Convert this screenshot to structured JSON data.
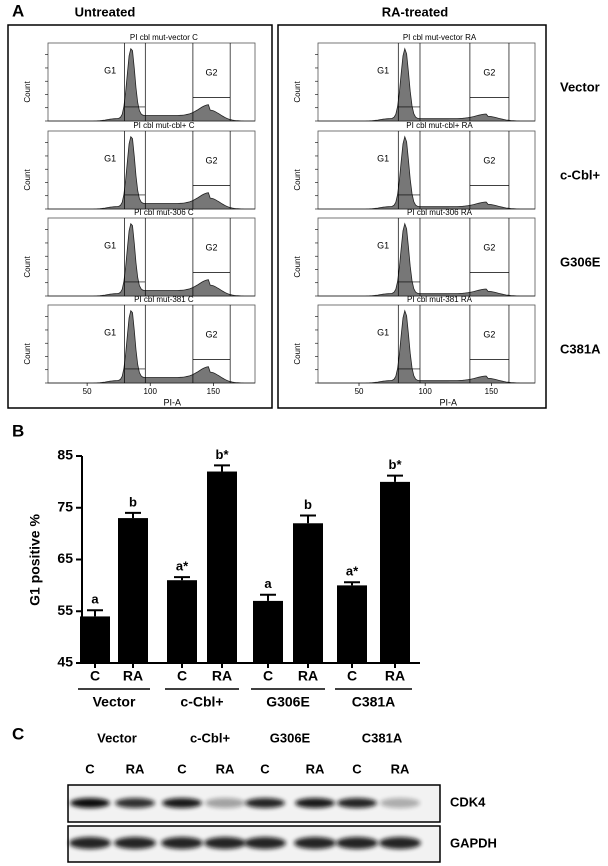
{
  "panel_a": {
    "label": "A",
    "columns": [
      "Untreated",
      "RA-treated"
    ],
    "rows": [
      {
        "label": "Vector",
        "plots": [
          "PI cbl mut-vector C",
          "PI cbl mut-vector RA"
        ]
      },
      {
        "label": "c-Cbl+",
        "plots": [
          "PI cbl mut-cbl+ C",
          "PI cbl mut-cbl+ RA"
        ]
      },
      {
        "label": "G306E",
        "plots": [
          "PI cbl mut-306 C",
          "PI cbl mut-306 RA"
        ]
      },
      {
        "label": "C381A",
        "plots": [
          "PI cbl mut-381 C",
          "PI cbl mut-381 RA"
        ]
      }
    ],
    "gates": [
      "G1",
      "G2"
    ],
    "y_label": "Count",
    "x_label": "PI-A",
    "xlim": [
      19,
      183
    ],
    "xticks": [
      50,
      100,
      150
    ]
  },
  "chart_data": {
    "type": "bar",
    "panel_label": "B",
    "y_label": "G1 positive %",
    "categories": [
      "C",
      "RA",
      "C",
      "RA",
      "C",
      "RA",
      "C",
      "RA"
    ],
    "groups": [
      "Vector",
      "c-Cbl+",
      "G306E",
      "C381A"
    ],
    "values": [
      54,
      73,
      61,
      82,
      57,
      72,
      60,
      80
    ],
    "errors": [
      1.2,
      1.0,
      0.6,
      1.2,
      1.2,
      1.5,
      0.6,
      1.2
    ],
    "annotations": [
      "a",
      "b",
      "a*",
      "b*",
      "a",
      "b",
      "a*",
      "b*"
    ],
    "color": "#000000",
    "ylim": [
      45,
      85
    ],
    "yticks": [
      45,
      55,
      65,
      75,
      85
    ]
  },
  "panel_c": {
    "label": "C",
    "groups": [
      "Vector",
      "c-Cbl+",
      "G306E",
      "C381A"
    ],
    "lanes": [
      "C",
      "RA",
      "C",
      "RA",
      "C",
      "RA",
      "C",
      "RA"
    ],
    "blots": [
      "CDK4",
      "GAPDH"
    ]
  }
}
